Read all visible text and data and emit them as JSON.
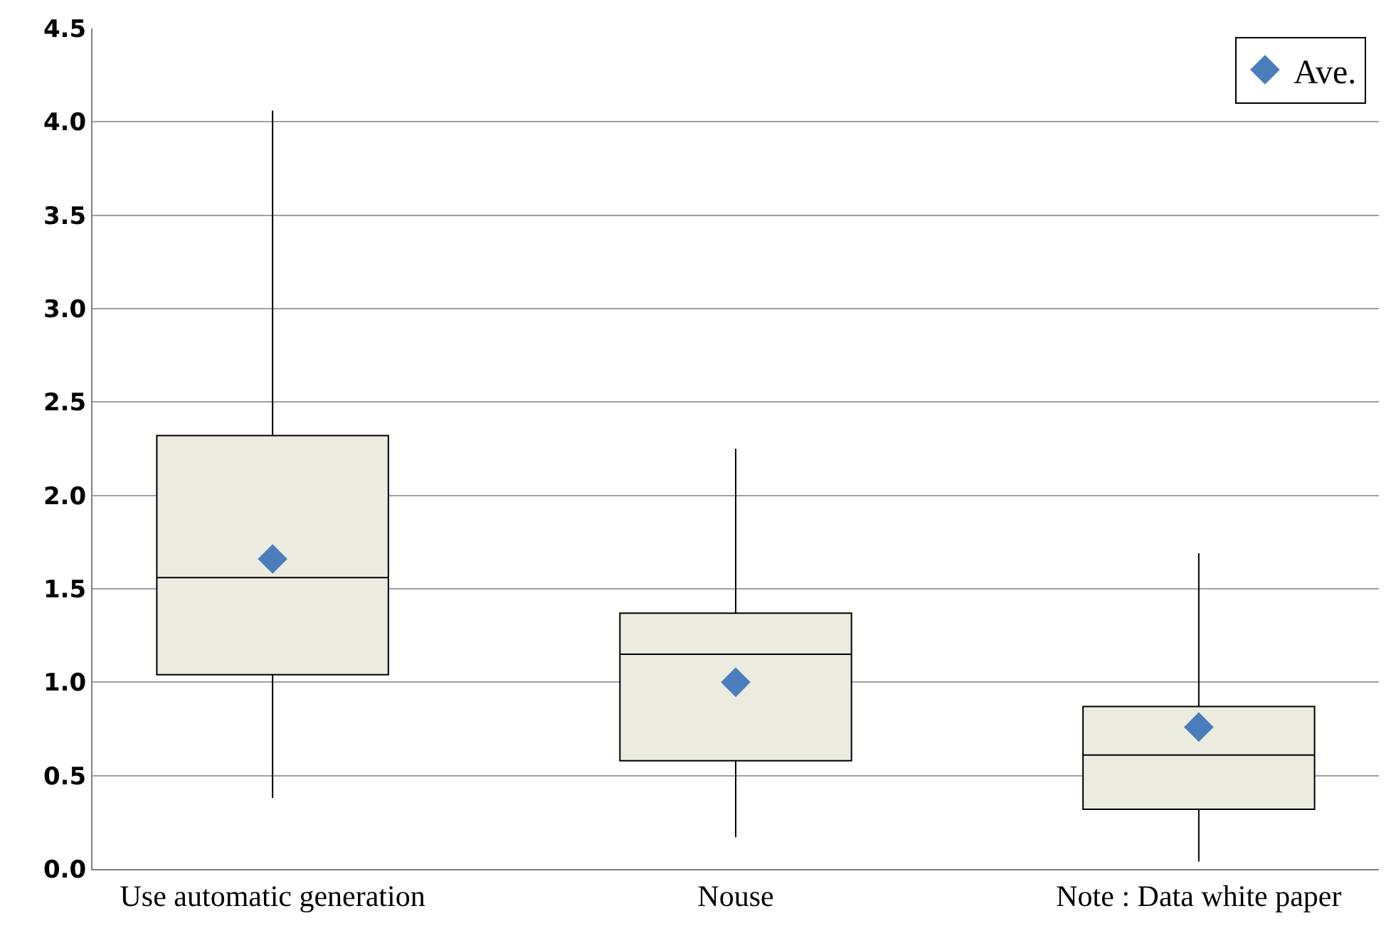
{
  "chart_data": {
    "type": "box",
    "categories": [
      "Use automatic generation",
      "Nouse",
      "Note : Data white paper"
    ],
    "boxes": [
      {
        "low": 0.38,
        "q1": 1.04,
        "median": 1.56,
        "q3": 2.32,
        "high": 4.06
      },
      {
        "low": 0.17,
        "q1": 0.58,
        "median": 1.15,
        "q3": 1.37,
        "high": 2.25
      },
      {
        "low": 0.04,
        "q1": 0.32,
        "median": 0.61,
        "q3": 0.87,
        "high": 1.69
      }
    ],
    "color": "#ecebe0",
    "series": [
      {
        "name": "Ave.",
        "type": "scatter",
        "color": "#4a7ebb",
        "x": [
          "Use automatic generation",
          "Nouse",
          "Note : Data white paper"
        ],
        "values": [
          1.66,
          1.0,
          0.76
        ]
      }
    ],
    "ylim": [
      0,
      4.5
    ],
    "yticks": [
      {
        "value": 0,
        "label": "0.0"
      },
      {
        "value": 0.5,
        "label": "0.5"
      },
      {
        "value": 1,
        "label": "1.0"
      },
      {
        "value": 1.5,
        "label": "1.5"
      },
      {
        "value": 2,
        "label": "2.0"
      },
      {
        "value": 2.5,
        "label": "2.5"
      },
      {
        "value": 3,
        "label": "3.0"
      },
      {
        "value": 3.5,
        "label": "3.5"
      },
      {
        "value": 4,
        "label": "4.0"
      },
      {
        "value": 4.5,
        "label": "4.5"
      }
    ],
    "grid": "y",
    "legend": "top right",
    "marker": "diamond"
  }
}
